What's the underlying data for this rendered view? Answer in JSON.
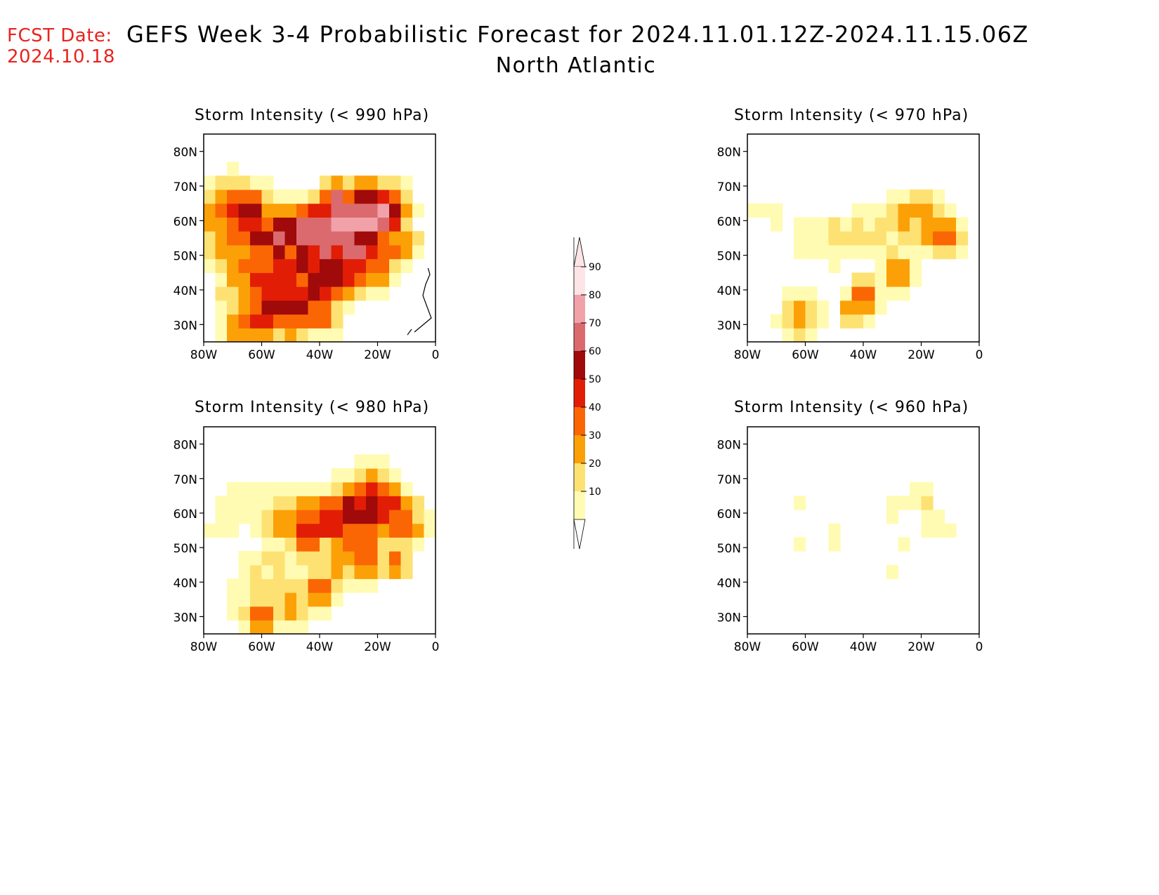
{
  "header": {
    "fcst_label": "FCST Date:",
    "fcst_date": "2024.10.18",
    "title": "GEFS Week 3-4 Probabilistic Forecast for 2024.11.01.12Z-2024.11.15.06Z",
    "subtitle": "North Atlantic"
  },
  "lat_labels": [
    "80N",
    "70N",
    "60N",
    "50N",
    "40N",
    "30N"
  ],
  "lon_labels": [
    "80W",
    "60W",
    "40W",
    "20W",
    "0"
  ],
  "panels": [
    {
      "title": "Storm Intensity (< 990 hPa)"
    },
    {
      "title": "Storm Intensity (< 970 hPa)"
    },
    {
      "title": "Storm Intensity (< 980 hPa)"
    },
    {
      "title": "Storm Intensity (< 960 hPa)"
    }
  ],
  "colorbar": {
    "labels": [
      "90",
      "80",
      "70",
      "60",
      "50",
      "40",
      "30",
      "20",
      "10"
    ],
    "colors": [
      "#fde4e6",
      "#f1a2a9",
      "#db6a6f",
      "#a00a0a",
      "#e21d06",
      "#fb6604",
      "#fca007",
      "#fde273",
      "#fffbb2"
    ]
  },
  "colors": {
    "fcst_text": "#e8231e"
  }
}
